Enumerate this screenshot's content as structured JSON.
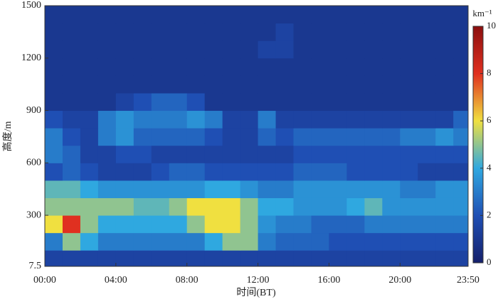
{
  "chart_data": {
    "type": "heatmap",
    "xlabel": "时间(BT)",
    "ylabel": "高度/m",
    "colorbar_label": "km⁻¹",
    "x": [
      30,
      90,
      150,
      210,
      270,
      330,
      390,
      450,
      510,
      570,
      630,
      690,
      750,
      810,
      870,
      930,
      990,
      1050,
      1110,
      1170,
      1230,
      1290,
      1350,
      1410
    ],
    "y": [
      50,
      150,
      250,
      350,
      450,
      550,
      650,
      750,
      850,
      950,
      1050,
      1150,
      1250,
      1350,
      1450
    ],
    "z": [
      [
        1.5,
        1.5,
        1.5,
        1.5,
        1.5,
        1.5,
        1.5,
        1.5,
        1.5,
        1.5,
        1.5,
        1.5,
        1.5,
        1.5,
        1.5,
        1.5,
        1.5,
        1.5,
        1.5,
        1.5,
        1.5,
        1.5,
        1.5,
        1.5
      ],
      [
        3,
        5,
        4,
        3,
        3,
        3,
        3,
        3,
        3,
        4,
        5,
        5,
        3,
        2.5,
        2.5,
        2.5,
        2,
        2,
        2,
        2,
        2,
        2,
        2,
        2
      ],
      [
        6,
        8,
        5,
        4,
        4,
        4,
        4,
        4,
        5,
        6,
        6,
        5,
        3.5,
        3,
        3,
        2.5,
        2.5,
        2.5,
        3,
        3,
        3,
        3,
        3,
        3
      ],
      [
        5,
        5,
        5,
        5,
        5,
        4.5,
        4.5,
        5,
        6,
        6,
        6,
        5,
        4,
        4,
        3.5,
        3.5,
        3.5,
        4,
        4.5,
        3.5,
        3.5,
        3.5,
        3.5,
        3.5
      ],
      [
        4.5,
        4.5,
        4,
        3.5,
        3.5,
        3.5,
        3.5,
        3.5,
        3.5,
        4,
        4,
        3.5,
        3,
        3,
        3.5,
        3.5,
        3.5,
        3.5,
        3.5,
        3.5,
        3,
        3,
        3.5,
        3.5
      ],
      [
        2,
        2.5,
        2,
        1.5,
        1.5,
        1.5,
        2,
        2.5,
        2.5,
        2,
        2,
        2,
        2,
        2,
        2.5,
        2.5,
        2.5,
        2,
        2,
        2,
        2,
        1.5,
        1.5,
        1.5
      ],
      [
        3,
        2.5,
        1.5,
        1.5,
        2,
        2,
        1.5,
        1.5,
        1.5,
        1.5,
        1.5,
        1.5,
        1.5,
        1.5,
        2,
        2,
        2,
        2,
        2,
        2,
        2,
        2,
        2,
        2
      ],
      [
        3,
        2,
        1.5,
        3,
        3.5,
        2.5,
        2.5,
        2.5,
        2.5,
        2,
        1.5,
        1.5,
        2.5,
        2,
        2.5,
        2.5,
        2.5,
        2.5,
        2.5,
        2.5,
        3,
        3,
        3.5,
        3
      ],
      [
        2,
        1.5,
        1.5,
        3,
        3.5,
        3,
        3,
        3,
        3.5,
        3,
        1.5,
        1.5,
        3,
        1.5,
        1.5,
        1.5,
        1.5,
        1.5,
        1.5,
        1.5,
        1.5,
        1.5,
        1.5,
        2.5
      ],
      [
        1,
        1,
        1,
        1,
        1.5,
        2,
        2.5,
        2.5,
        2,
        1,
        1,
        1,
        1,
        1,
        1,
        1,
        1,
        1,
        1,
        1,
        1,
        1,
        1,
        1
      ],
      [
        1,
        1,
        1,
        1,
        1,
        1,
        1,
        1,
        1,
        1,
        1,
        1,
        1,
        1,
        1,
        1,
        1,
        1,
        1,
        1,
        1,
        1,
        1,
        1
      ],
      [
        1,
        1,
        1,
        1,
        1,
        1,
        1,
        1,
        1,
        1,
        1,
        1,
        1,
        1,
        1,
        1,
        1,
        1,
        1,
        1,
        1,
        1,
        1,
        1
      ],
      [
        1,
        1,
        1,
        1,
        1,
        1,
        1,
        1,
        1,
        1,
        1,
        1,
        1.5,
        1.5,
        1,
        1,
        1,
        1,
        1,
        1,
        1,
        1,
        1,
        1
      ],
      [
        1,
        1,
        1,
        1,
        1,
        1,
        1,
        1,
        1,
        1,
        1,
        1,
        1,
        1.5,
        1,
        1,
        1,
        1,
        1,
        1,
        1,
        1,
        1,
        1
      ],
      [
        1,
        1,
        1,
        1,
        1,
        1,
        1,
        1,
        1,
        1,
        1,
        1,
        1,
        1,
        1,
        1,
        1,
        1,
        1,
        1,
        1,
        1,
        1,
        1
      ]
    ],
    "xlim": [
      0,
      1430
    ],
    "xticks": [
      {
        "value": 0,
        "label": "00:00"
      },
      {
        "value": 240,
        "label": "04:00"
      },
      {
        "value": 480,
        "label": "08:00"
      },
      {
        "value": 720,
        "label": "12:00"
      },
      {
        "value": 960,
        "label": "16:00"
      },
      {
        "value": 1200,
        "label": "20:00"
      },
      {
        "value": 1430,
        "label": "23:50"
      }
    ],
    "ylim": [
      7.5,
      1500
    ],
    "yticks": [
      7.5,
      300,
      600,
      900,
      1200,
      1500
    ],
    "clim": [
      0,
      10
    ],
    "cticks": [
      0,
      2,
      4,
      6,
      8,
      10
    ],
    "colorscale": [
      "#15206b",
      "#1f4fb4",
      "#2fa8e0",
      "#f0e040",
      "#e03020",
      "#8b0f0f"
    ]
  }
}
